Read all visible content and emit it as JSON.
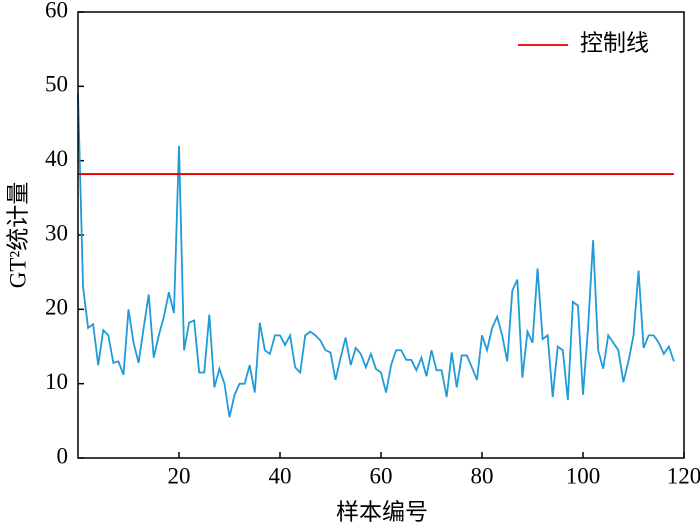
{
  "chart_data": {
    "type": "line",
    "x_label": "样本编号",
    "y_label": "GT²统计量",
    "x": [
      0,
      1,
      2,
      3,
      4,
      5,
      6,
      7,
      8,
      9,
      10,
      11,
      12,
      13,
      14,
      15,
      16,
      17,
      18,
      19,
      20,
      21,
      22,
      23,
      24,
      25,
      26,
      27,
      28,
      29,
      30,
      31,
      32,
      33,
      34,
      35,
      36,
      37,
      38,
      39,
      40,
      41,
      42,
      43,
      44,
      45,
      46,
      47,
      48,
      49,
      50,
      51,
      52,
      53,
      54,
      55,
      56,
      57,
      58,
      59,
      60,
      61,
      62,
      63,
      64,
      65,
      66,
      67,
      68,
      69,
      70,
      71,
      72,
      73,
      74,
      75,
      76,
      77,
      78,
      79,
      80,
      81,
      82,
      83,
      84,
      85,
      86,
      87,
      88,
      89,
      90,
      91,
      92,
      93,
      94,
      95,
      96,
      97,
      98,
      99,
      100,
      101,
      102,
      103,
      104,
      105,
      106,
      107,
      108,
      109,
      110,
      111,
      112,
      113,
      114,
      115,
      116,
      117,
      118
    ],
    "series": [
      {
        "color": "#1f9bd7",
        "values": [
          49,
          23,
          17.5,
          18,
          12.5,
          17.2,
          16.5,
          12.8,
          13,
          11.2,
          20,
          15.5,
          12.8,
          17.5,
          22,
          13.5,
          16.5,
          19,
          22.3,
          19.5,
          42,
          14.5,
          18.2,
          18.5,
          11.5,
          11.5,
          19.3,
          9.5,
          12,
          10,
          5.5,
          8.5,
          10,
          10,
          12.5,
          8.8,
          18.2,
          14.5,
          14,
          16.5,
          16.5,
          15.2,
          16.5,
          12.2,
          11.5,
          16.5,
          17,
          16.5,
          15.8,
          14.5,
          14.2,
          10.5,
          13.5,
          16.2,
          12.5,
          14.8,
          14,
          12.2,
          14,
          12,
          11.5,
          8.8,
          12.5,
          14.5,
          14.5,
          13.2,
          13.2,
          11.8,
          13.5,
          11,
          14.5,
          11.8,
          11.8,
          8.2,
          14.2,
          9.5,
          13.8,
          13.8,
          12.2,
          10.5,
          16.5,
          14.5,
          17.5,
          19,
          16.5,
          13,
          22.5,
          24,
          10.8,
          17,
          15.5,
          25.5,
          16,
          16.5,
          8.2,
          15,
          14.5,
          7.8,
          21,
          20.5,
          8.5,
          17.5,
          29.3,
          14.5,
          12,
          16.5,
          15.5,
          14.5,
          10.2,
          13,
          16.5,
          25.2,
          14.8,
          16.5,
          16.5,
          15.5,
          14,
          15,
          13
        ]
      }
    ],
    "control_line": {
      "name": "控制线",
      "value": 38.2,
      "color": "#e60000"
    },
    "legend": "upper right",
    "xlim": [
      0,
      120
    ],
    "xticks": [
      20,
      40,
      60,
      80,
      100,
      120
    ],
    "ylim": [
      0,
      60
    ],
    "yticks": [
      0,
      10,
      20,
      30,
      40,
      50,
      60
    ]
  }
}
